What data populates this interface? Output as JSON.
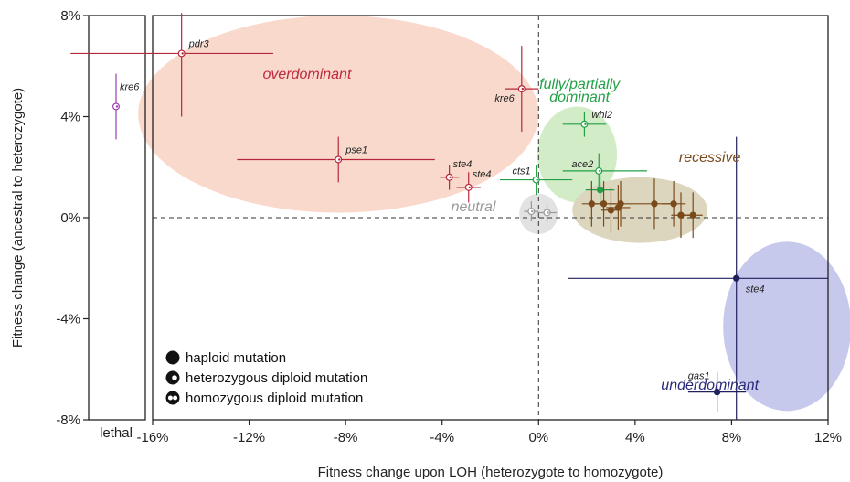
{
  "chart_data": {
    "type": "scatter",
    "title": "",
    "xlabel": "Fitness change upon LOH  (heterozygote to homozygote)",
    "ylabel": "Fitness change (ancestral to heterozygote)",
    "xlim": [
      -16,
      12
    ],
    "ylim": [
      -8,
      8
    ],
    "x_ticks": [
      {
        "value": -16,
        "label": "-16%"
      },
      {
        "value": -12,
        "label": "-12%"
      },
      {
        "value": -8,
        "label": "-8%"
      },
      {
        "value": -4,
        "label": "-4%"
      },
      {
        "value": 0,
        "label": "0%"
      },
      {
        "value": 4,
        "label": "4%"
      },
      {
        "value": 8,
        "label": "8%"
      },
      {
        "value": 12,
        "label": "12%"
      }
    ],
    "y_ticks": [
      {
        "value": 8,
        "label": "8%"
      },
      {
        "value": 4,
        "label": "4%"
      },
      {
        "value": 0,
        "label": "0%"
      },
      {
        "value": -4,
        "label": "-4%"
      },
      {
        "value": -8,
        "label": "-8%"
      }
    ],
    "lethal_panel_label": "lethal",
    "reference_lines": {
      "x": 0,
      "y": 0,
      "style": "dashed"
    },
    "regions": [
      {
        "name": "overdominant",
        "color": "#c0283c",
        "fill": "#f9d9cc",
        "cx": -8.3,
        "cy": 4.1,
        "rx": 8.3,
        "ry": 3.9
      },
      {
        "name": "fully/partially dominant",
        "color": "#22a046",
        "fill": "#d3ecc8",
        "cx": 1.6,
        "cy": 2.5,
        "rx": 1.65,
        "ry": 1.9
      },
      {
        "name": "recessive",
        "color": "#7a4a1a",
        "fill": "#ddd6be",
        "cx": 4.2,
        "cy": 0.3,
        "rx": 2.8,
        "ry": 1.3
      },
      {
        "name": "neutral",
        "color": "#999999",
        "fill": "#e2e2e2",
        "cx": 0,
        "cy": 0.15,
        "rx": 0.8,
        "ry": 0.8
      },
      {
        "name": "underdominant",
        "color": "#2a2a7a",
        "fill": "#c6c8ec",
        "cx": 10.3,
        "cy": -4.3,
        "rx": 2.65,
        "ry": 3.35
      }
    ],
    "region_labels": [
      {
        "text": "overdominant",
        "color": "#c0283c",
        "x": -9.6,
        "y": 5.5
      },
      {
        "text": "fully/partially",
        "color": "#22a046",
        "x": 1.7,
        "y": 5.1
      },
      {
        "text": "dominant",
        "color": "#22a046",
        "x": 1.7,
        "y": 4.6
      },
      {
        "text": "recessive",
        "color": "#7a4a1a",
        "x": 7.1,
        "y": 2.2
      },
      {
        "text": "neutral",
        "color": "#999999",
        "x": -2.7,
        "y": 0.25
      },
      {
        "text": "underdominant",
        "color": "#2a2a7a",
        "x": 7.1,
        "y": -6.8
      }
    ],
    "series": [
      {
        "name": "overdominant",
        "color": "#b5283b",
        "points": [
          {
            "x": -14.8,
            "y": 6.5,
            "xerr": [
              4.6,
              3.8
            ],
            "yerr": [
              2.5,
              1.6
            ],
            "label": "pdr3",
            "marker": "het"
          },
          {
            "x": -8.3,
            "y": 2.3,
            "xerr": [
              4.2,
              4.0
            ],
            "yerr": [
              0.9,
              0.9
            ],
            "label": "pse1",
            "marker": "het"
          },
          {
            "x": -3.7,
            "y": 1.6,
            "xerr": [
              0.4,
              0.4
            ],
            "yerr": [
              0.5,
              0.5
            ],
            "label": "ste4",
            "marker": "het"
          },
          {
            "x": -2.9,
            "y": 1.2,
            "xerr": [
              0.5,
              0.5
            ],
            "yerr": [
              0.6,
              0.6
            ],
            "label": "ste4",
            "marker": "het"
          },
          {
            "x": -0.7,
            "y": 5.1,
            "xerr": [
              0.7,
              0.7
            ],
            "yerr": [
              1.7,
              1.7
            ],
            "label": "kre6",
            "marker": "het"
          }
        ]
      },
      {
        "name": "lethal",
        "color": "#9b3fb3",
        "points": [
          {
            "x": 0,
            "y": 4.4,
            "xerr": [
              0,
              0
            ],
            "yerr": [
              1.3,
              1.3
            ],
            "label": "kre6",
            "marker": "het"
          }
        ]
      },
      {
        "name": "fully/partially dominant",
        "color": "#22a046",
        "points": [
          {
            "x": 1.9,
            "y": 3.7,
            "xerr": [
              0.9,
              0.9
            ],
            "yerr": [
              0.5,
              0.5
            ],
            "label": "whi2",
            "marker": "het"
          },
          {
            "x": -0.1,
            "y": 1.5,
            "xerr": [
              1.5,
              1.5
            ],
            "yerr": [
              0.6,
              0.6
            ],
            "label": "cts1",
            "marker": "het"
          },
          {
            "x": 2.5,
            "y": 1.85,
            "xerr": [
              1.5,
              2.0
            ],
            "yerr": [
              0.7,
              0.7
            ],
            "label": "ace2",
            "marker": "het"
          },
          {
            "x": 2.55,
            "y": 1.1,
            "xerr": [
              0.6,
              0.6
            ],
            "yerr": [
              0.6,
              0.6
            ],
            "label": "",
            "marker": "haploid"
          }
        ]
      },
      {
        "name": "recessive",
        "color": "#7a4a1a",
        "points": [
          {
            "x": 2.2,
            "y": 0.55,
            "xerr": [
              0.4,
              0.4
            ],
            "yerr": [
              0.9,
              0.9
            ],
            "label": "",
            "marker": "haploid"
          },
          {
            "x": 2.7,
            "y": 0.55,
            "xerr": [
              0.5,
              0.5
            ],
            "yerr": [
              0.9,
              0.9
            ],
            "label": "",
            "marker": "haploid"
          },
          {
            "x": 3.0,
            "y": 0.3,
            "xerr": [
              0.4,
              0.4
            ],
            "yerr": [
              0.9,
              0.9
            ],
            "label": "",
            "marker": "haploid"
          },
          {
            "x": 3.3,
            "y": 0.4,
            "xerr": [
              0.5,
              0.5
            ],
            "yerr": [
              0.9,
              0.9
            ],
            "label": "",
            "marker": "haploid"
          },
          {
            "x": 3.4,
            "y": 0.55,
            "xerr": [
              0.5,
              0.5
            ],
            "yerr": [
              0.9,
              0.9
            ],
            "label": "",
            "marker": "haploid"
          },
          {
            "x": 4.8,
            "y": 0.55,
            "xerr": [
              0.9,
              0.9
            ],
            "yerr": [
              1.0,
              1.0
            ],
            "label": "",
            "marker": "haploid"
          },
          {
            "x": 5.6,
            "y": 0.55,
            "xerr": [
              0.5,
              0.5
            ],
            "yerr": [
              0.9,
              0.9
            ],
            "label": "",
            "marker": "haploid"
          },
          {
            "x": 5.9,
            "y": 0.1,
            "xerr": [
              0.4,
              0.4
            ],
            "yerr": [
              0.9,
              0.9
            ],
            "label": "",
            "marker": "haploid"
          },
          {
            "x": 6.4,
            "y": 0.1,
            "xerr": [
              0.4,
              0.4
            ],
            "yerr": [
              0.9,
              0.9
            ],
            "label": "",
            "marker": "haploid"
          }
        ]
      },
      {
        "name": "neutral",
        "color": "#9a9a9a",
        "points": [
          {
            "x": -0.3,
            "y": 0.25,
            "xerr": [
              0.3,
              0.3
            ],
            "yerr": [
              0.4,
              0.4
            ],
            "label": "",
            "marker": "het"
          },
          {
            "x": 0.35,
            "y": 0.2,
            "xerr": [
              0.4,
              0.4
            ],
            "yerr": [
              0.4,
              0.4
            ],
            "label": "",
            "marker": "het"
          }
        ]
      },
      {
        "name": "underdominant",
        "color": "#20205e",
        "points": [
          {
            "x": 8.2,
            "y": -2.4,
            "xerr": [
              7.0,
              3.8
            ],
            "yerr": [
              5.6,
              5.6
            ],
            "label": "ste4",
            "marker": "haploid"
          },
          {
            "x": 7.4,
            "y": -6.9,
            "xerr": [
              1.2,
              1.2
            ],
            "yerr": [
              0.8,
              0.8
            ],
            "label": "gas1",
            "marker": "haploid"
          }
        ]
      }
    ],
    "legend": {
      "position": "bottom-left",
      "items": [
        {
          "label": "haploid mutation",
          "marker": "haploid"
        },
        {
          "label": "heterozygous diploid mutation",
          "marker": "het"
        },
        {
          "label": "homozygous diploid mutation",
          "marker": "hom"
        }
      ]
    }
  }
}
